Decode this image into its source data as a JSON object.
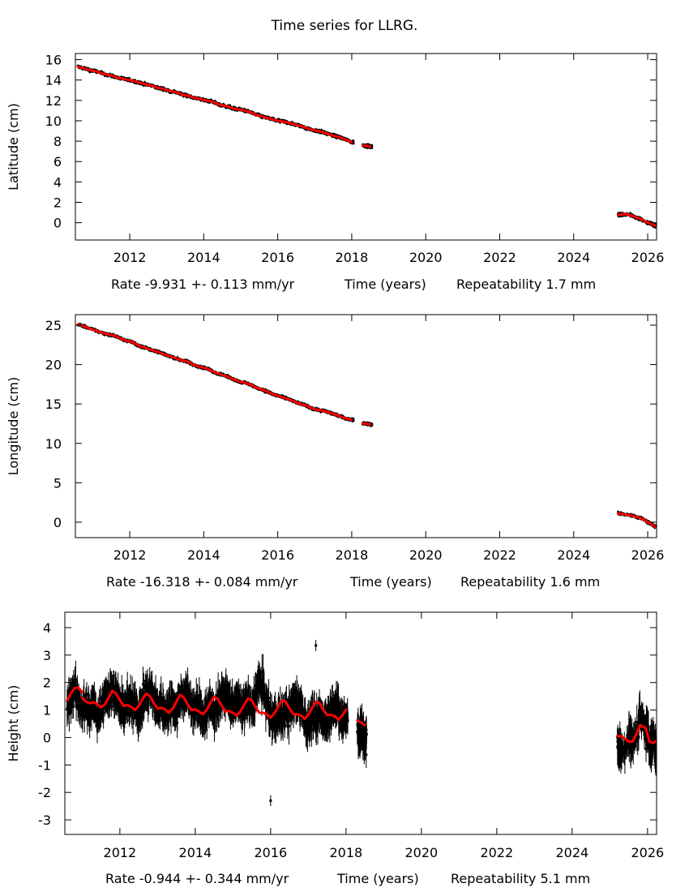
{
  "title": "Time series for LLRG.",
  "colors": {
    "data": "#000000",
    "fit": "#ff0000",
    "axis": "#000000",
    "background": "#ffffff"
  },
  "chart_data": [
    {
      "type": "scatter",
      "id": "latitude",
      "ylabel": "Latitude (cm)",
      "xlabel_parts": [
        "Rate -9.931 +- 0.113 mm/yr",
        "Time (years)",
        "Repeatability 1.7 mm"
      ],
      "xlim": [
        2010.53,
        2026.24
      ],
      "ylim": [
        -1.7,
        16.6
      ],
      "xticks": [
        2012,
        2014,
        2016,
        2018,
        2020,
        2022,
        2024,
        2026
      ],
      "yticks": [
        0,
        2,
        4,
        6,
        8,
        10,
        12,
        14,
        16
      ],
      "error": 0.15,
      "segments": [
        {
          "x": [
            2010.6,
            2010.7,
            2010.8,
            2010.9,
            2011.0,
            2011.1,
            2011.2,
            2011.3,
            2011.4,
            2011.5,
            2011.6,
            2011.7,
            2011.8,
            2011.9,
            2012.0,
            2012.1,
            2012.2,
            2012.3,
            2012.4,
            2012.5,
            2012.6,
            2012.7,
            2012.8,
            2012.9,
            2013.0,
            2013.1,
            2013.2,
            2013.3,
            2013.4,
            2013.5,
            2013.6,
            2013.7,
            2013.8,
            2013.9,
            2014.0,
            2014.1,
            2014.2,
            2014.3,
            2014.4,
            2014.5,
            2014.6,
            2014.7,
            2014.8,
            2014.9,
            2015.0,
            2015.1,
            2015.2,
            2015.3,
            2015.4,
            2015.5,
            2015.6,
            2015.7,
            2015.8,
            2015.9,
            2016.0,
            2016.1,
            2016.2,
            2016.3,
            2016.4,
            2016.5,
            2016.6,
            2016.7,
            2016.8,
            2016.9,
            2017.0,
            2017.1,
            2017.2,
            2017.3,
            2017.4,
            2017.5,
            2017.6,
            2017.7,
            2017.8,
            2017.9,
            2018.0
          ],
          "y": [
            15.3,
            15.2,
            15.1,
            15.0,
            14.9,
            14.85,
            14.7,
            14.6,
            14.5,
            14.45,
            14.3,
            14.2,
            14.15,
            14.05,
            14.0,
            13.9,
            13.8,
            13.7,
            13.6,
            13.5,
            13.45,
            13.3,
            13.2,
            13.15,
            13.0,
            12.9,
            12.85,
            12.75,
            12.6,
            12.5,
            12.45,
            12.3,
            12.2,
            12.15,
            12.05,
            11.95,
            11.9,
            11.8,
            11.6,
            11.5,
            11.45,
            11.35,
            11.2,
            11.15,
            11.1,
            11.0,
            10.9,
            10.8,
            10.6,
            10.5,
            10.4,
            10.3,
            10.2,
            10.1,
            10.0,
            9.95,
            9.9,
            9.8,
            9.7,
            9.6,
            9.5,
            9.4,
            9.25,
            9.15,
            9.05,
            9.0,
            8.9,
            8.8,
            8.65,
            8.55,
            8.45,
            8.35,
            8.2,
            8.05,
            7.9
          ]
        },
        {
          "x": [
            2018.3,
            2018.35,
            2018.4,
            2018.45,
            2018.5
          ],
          "y": [
            7.6,
            7.55,
            7.55,
            7.5,
            7.45
          ]
        },
        {
          "x": [
            2025.2,
            2025.25,
            2025.3,
            2025.5,
            2025.55,
            2025.6,
            2025.75,
            2025.8,
            2025.95,
            2026.0,
            2026.05,
            2026.1,
            2026.15,
            2026.2
          ],
          "y": [
            0.75,
            0.8,
            0.85,
            0.8,
            0.7,
            0.65,
            0.45,
            0.4,
            0.1,
            0.0,
            -0.05,
            -0.1,
            -0.2,
            -0.3
          ]
        }
      ]
    },
    {
      "type": "scatter",
      "id": "longitude",
      "ylabel": "Longitude (cm)",
      "xlabel_parts": [
        "Rate -16.318 +- 0.084 mm/yr",
        "Time (years)",
        "Repeatability 1.6 mm"
      ],
      "xlim": [
        2010.53,
        2026.24
      ],
      "ylim": [
        -1.96,
        26.34
      ],
      "xticks": [
        2012,
        2014,
        2016,
        2018,
        2020,
        2022,
        2024,
        2026
      ],
      "yticks": [
        0,
        5,
        10,
        15,
        20,
        25
      ],
      "error": 0.2,
      "segments": [
        {
          "x": [
            2010.6,
            2010.7,
            2010.8,
            2010.9,
            2011.0,
            2011.1,
            2011.2,
            2011.3,
            2011.4,
            2011.5,
            2011.6,
            2011.7,
            2011.8,
            2011.9,
            2012.0,
            2012.1,
            2012.2,
            2012.3,
            2012.4,
            2012.5,
            2012.6,
            2012.7,
            2012.8,
            2012.9,
            2013.0,
            2013.1,
            2013.2,
            2013.3,
            2013.4,
            2013.5,
            2013.6,
            2013.7,
            2013.8,
            2013.9,
            2014.0,
            2014.1,
            2014.2,
            2014.3,
            2014.4,
            2014.5,
            2014.6,
            2014.7,
            2014.8,
            2014.9,
            2015.0,
            2015.1,
            2015.2,
            2015.3,
            2015.4,
            2015.5,
            2015.6,
            2015.7,
            2015.8,
            2015.9,
            2016.0,
            2016.1,
            2016.2,
            2016.3,
            2016.4,
            2016.5,
            2016.6,
            2016.7,
            2016.8,
            2016.9,
            2017.0,
            2017.1,
            2017.2,
            2017.3,
            2017.4,
            2017.5,
            2017.6,
            2017.7,
            2017.8,
            2017.9,
            2018.0
          ],
          "y": [
            25.1,
            24.95,
            24.8,
            24.6,
            24.45,
            24.3,
            24.1,
            23.95,
            23.85,
            23.75,
            23.65,
            23.45,
            23.2,
            23.05,
            22.95,
            22.8,
            22.5,
            22.3,
            22.2,
            22.0,
            21.85,
            21.7,
            21.55,
            21.35,
            21.2,
            21.05,
            20.85,
            20.7,
            20.55,
            20.45,
            20.3,
            20.0,
            19.85,
            19.7,
            19.6,
            19.45,
            19.25,
            19.0,
            18.85,
            18.7,
            18.55,
            18.35,
            18.15,
            17.95,
            17.8,
            17.7,
            17.55,
            17.4,
            17.1,
            16.95,
            16.8,
            16.6,
            16.4,
            16.2,
            16.05,
            15.9,
            15.75,
            15.6,
            15.4,
            15.2,
            15.05,
            14.9,
            14.75,
            14.5,
            14.35,
            14.25,
            14.15,
            14.05,
            13.9,
            13.75,
            13.6,
            13.4,
            13.2,
            13.1,
            13.0
          ]
        },
        {
          "x": [
            2018.3,
            2018.35,
            2018.4,
            2018.45,
            2018.5
          ],
          "y": [
            12.55,
            12.5,
            12.5,
            12.45,
            12.4
          ]
        },
        {
          "x": [
            2025.2,
            2025.25,
            2025.3,
            2025.5,
            2025.55,
            2025.6,
            2025.75,
            2025.8,
            2025.95,
            2026.0,
            2026.05,
            2026.1,
            2026.15,
            2026.2
          ],
          "y": [
            1.15,
            1.1,
            1.05,
            0.9,
            0.85,
            0.8,
            0.6,
            0.55,
            0.2,
            0.0,
            -0.1,
            -0.25,
            -0.4,
            -0.6
          ]
        }
      ]
    },
    {
      "type": "scatter",
      "id": "height",
      "ylabel": "Height (cm)",
      "xlabel_parts": [
        "Rate -0.944 +- 0.344 mm/yr",
        "Time (years)",
        "Repeatability 5.1 mm"
      ],
      "xlim": [
        2010.54,
        2026.24
      ],
      "ylim": [
        -3.53,
        4.56
      ],
      "xticks": [
        2012,
        2014,
        2016,
        2018,
        2020,
        2022,
        2024,
        2026
      ],
      "yticks": [
        -3,
        -2,
        -1,
        0,
        1,
        2,
        3,
        4
      ],
      "error": 0.5,
      "segments": [
        {
          "x": [
            2010.6,
            2010.7,
            2010.8,
            2010.9,
            2011.0,
            2011.1,
            2011.2,
            2011.3,
            2011.4,
            2011.5,
            2011.6,
            2011.7,
            2011.8,
            2011.9,
            2012.0,
            2012.1,
            2012.2,
            2012.3,
            2012.4,
            2012.5,
            2012.6,
            2012.7,
            2012.8,
            2012.9,
            2013.0,
            2013.1,
            2013.2,
            2013.3,
            2013.4,
            2013.5,
            2013.6,
            2013.7,
            2013.8,
            2013.9,
            2014.0,
            2014.1,
            2014.2,
            2014.3,
            2014.4,
            2014.5,
            2014.6,
            2014.7,
            2014.8,
            2014.9,
            2015.0,
            2015.1,
            2015.2,
            2015.3,
            2015.4,
            2015.5,
            2015.6,
            2015.7,
            2015.8,
            2015.9,
            2016.0,
            2016.1,
            2016.2,
            2016.3,
            2016.4,
            2016.5,
            2016.6,
            2016.7,
            2016.8,
            2016.9,
            2017.0,
            2017.1,
            2017.2,
            2017.3,
            2017.4,
            2017.5,
            2017.6,
            2017.7,
            2017.8,
            2017.9,
            2018.0
          ],
          "y": [
            1.2,
            1.5,
            1.7,
            1.3,
            1.0,
            1.2,
            0.9,
            1.3,
            0.7,
            1.1,
            1.6,
            1.4,
            1.8,
            1.5,
            1.2,
            1.0,
            1.3,
            1.1,
            1.4,
            0.8,
            1.3,
            1.6,
            1.7,
            1.4,
            1.0,
            1.2,
            0.9,
            1.1,
            1.3,
            1.0,
            1.4,
            1.6,
            1.5,
            1.2,
            1.0,
            1.1,
            0.8,
            1.0,
            1.2,
            0.9,
            1.3,
            1.5,
            1.6,
            1.3,
            1.1,
            1.4,
            1.0,
            1.2,
            1.3,
            0.9,
            1.6,
            2.0,
            1.8,
            1.2,
            0.8,
            0.6,
            0.9,
            0.7,
            1.0,
            0.9,
            1.2,
            1.4,
            1.1,
            0.7,
            0.4,
            0.8,
            0.5,
            0.9,
            0.6,
            0.7,
            1.0,
            1.3,
            0.9,
            0.6,
            0.7
          ]
        },
        {
          "x": [
            2018.3,
            2018.35,
            2018.4,
            2018.45,
            2018.5
          ],
          "y": [
            0.2,
            0.0,
            0.3,
            0.1,
            -0.1
          ]
        },
        {
          "x": [
            2025.2,
            2025.25,
            2025.3,
            2025.5,
            2025.55,
            2025.6,
            2025.75,
            2025.8,
            2025.95,
            2026.0,
            2026.05,
            2026.1,
            2026.15,
            2026.2
          ],
          "y": [
            -0.2,
            -0.4,
            -0.5,
            -0.1,
            0.0,
            -0.3,
            0.4,
            0.8,
            0.1,
            0.3,
            -0.3,
            -0.2,
            0.0,
            -0.4
          ]
        }
      ],
      "outliers": [
        {
          "x": 2016.0,
          "y": -2.3
        },
        {
          "x": 2017.2,
          "y": 3.35
        }
      ],
      "fit": [
        {
          "x": [
            2010.6,
            2010.7,
            2010.8,
            2010.9,
            2011.0
          ],
          "y": [
            1.35,
            1.6,
            1.8,
            1.82,
            1.65
          ]
        },
        {
          "x": [
            2011.0,
            2011.1,
            2011.2,
            2011.3,
            2011.4,
            2011.5,
            2011.6,
            2011.7,
            2011.8,
            2011.9,
            2012.0,
            2012.1,
            2012.2,
            2012.3,
            2012.4,
            2012.5,
            2012.6,
            2012.7,
            2012.8,
            2012.9,
            2013.0,
            2013.1,
            2013.2,
            2013.3,
            2013.4,
            2013.5,
            2013.6,
            2013.7,
            2013.8,
            2013.9,
            2014.0,
            2014.1,
            2014.2,
            2014.3,
            2014.4,
            2014.5,
            2014.6,
            2014.7,
            2014.8,
            2014.9,
            2015.0,
            2015.1,
            2015.2,
            2015.3,
            2015.4,
            2015.5,
            2015.6,
            2015.7,
            2015.8,
            2015.9,
            2016.0,
            2016.1,
            2016.2,
            2016.3,
            2016.4,
            2016.5,
            2016.6,
            2016.7,
            2016.8,
            2016.9,
            2017.0,
            2017.1,
            2017.2,
            2017.3,
            2017.4,
            2017.5,
            2017.6,
            2017.7,
            2017.8,
            2017.9,
            2018.0
          ],
          "y": [
            1.45,
            1.3,
            1.25,
            1.28,
            1.22,
            1.1,
            1.2,
            1.45,
            1.7,
            1.6,
            1.35,
            1.15,
            1.18,
            1.12,
            1.0,
            1.15,
            1.4,
            1.6,
            1.5,
            1.25,
            1.05,
            1.08,
            1.02,
            0.9,
            1.05,
            1.3,
            1.55,
            1.45,
            1.2,
            1.0,
            1.02,
            0.95,
            0.85,
            1.0,
            1.25,
            1.48,
            1.4,
            1.15,
            0.95,
            0.96,
            0.9,
            0.8,
            0.95,
            1.2,
            1.42,
            1.35,
            1.1,
            0.9,
            0.9,
            0.85,
            0.72,
            0.88,
            1.12,
            1.35,
            1.3,
            1.05,
            0.85,
            0.85,
            0.8,
            0.68,
            0.82,
            1.08,
            1.3,
            1.25,
            1.0,
            0.82,
            0.82,
            0.78,
            0.65,
            0.8,
            1.02
          ]
        },
        {
          "x": [
            2018.3,
            2018.4,
            2018.5
          ],
          "y": [
            0.62,
            0.55,
            0.45
          ]
        },
        {
          "x": [
            2025.2,
            2025.3,
            2025.5,
            2025.6,
            2025.75,
            2025.8,
            2025.95,
            2026.05,
            2026.15,
            2026.2
          ],
          "y": [
            0.05,
            0.05,
            -0.15,
            -0.15,
            0.25,
            0.45,
            0.35,
            -0.15,
            -0.2,
            -0.15
          ]
        }
      ]
    }
  ]
}
